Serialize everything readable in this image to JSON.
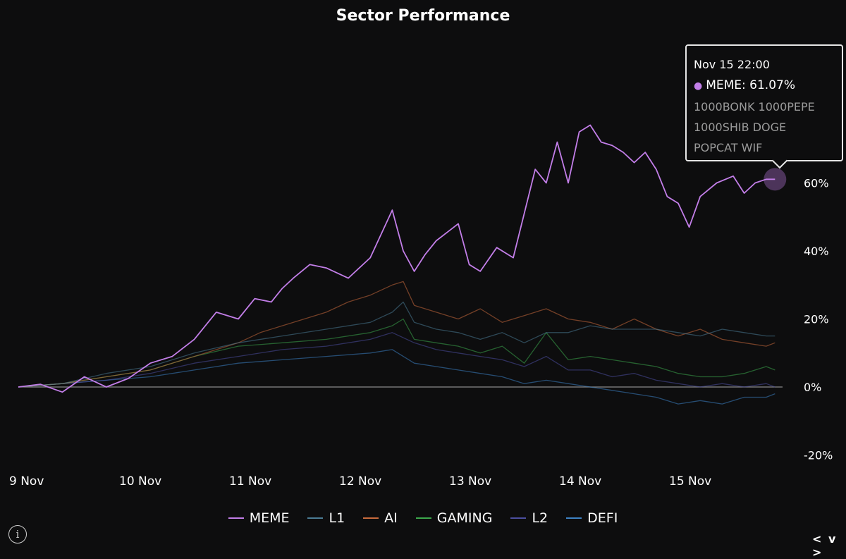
{
  "chart_data": {
    "type": "line",
    "title": "Sector Performance",
    "xlabel": "",
    "ylabel": "",
    "x_ticks": [
      "9 Nov",
      "10 Nov",
      "11 Nov",
      "12 Nov",
      "13 Nov",
      "14 Nov",
      "15 Nov"
    ],
    "y_ticks": [
      "-20%",
      "0%",
      "20%",
      "40%",
      "60%"
    ],
    "ylim": [
      -20,
      70
    ],
    "x_range": [
      0,
      6.88
    ],
    "grid": false,
    "legend_position": "bottom",
    "series": [
      {
        "name": "MEME",
        "color": "#c27ee8",
        "x": [
          0,
          0.2,
          0.4,
          0.6,
          0.8,
          1.0,
          1.2,
          1.4,
          1.6,
          1.8,
          2.0,
          2.15,
          2.3,
          2.4,
          2.5,
          2.65,
          2.8,
          3.0,
          3.2,
          3.4,
          3.5,
          3.6,
          3.7,
          3.8,
          4.0,
          4.1,
          4.2,
          4.35,
          4.5,
          4.7,
          4.8,
          4.9,
          5.0,
          5.1,
          5.2,
          5.3,
          5.4,
          5.5,
          5.6,
          5.7,
          5.8,
          5.9,
          6.0,
          6.1,
          6.2,
          6.35,
          6.5,
          6.6,
          6.7,
          6.8,
          6.88
        ],
        "y": [
          0,
          0.8,
          -1.5,
          3,
          0,
          2.5,
          7,
          9,
          14,
          22,
          20,
          26,
          25,
          29,
          32,
          36,
          35,
          32,
          38,
          52,
          40,
          34,
          39,
          43,
          48,
          36,
          34,
          41,
          38,
          64,
          60,
          72,
          60,
          75,
          77,
          72,
          71,
          69,
          66,
          69,
          64,
          56,
          54,
          47,
          56,
          60,
          62,
          57,
          60,
          61.07,
          61.07
        ]
      },
      {
        "name": "L1",
        "color": "#4b7c95",
        "x": [
          0,
          0.4,
          0.8,
          1.2,
          1.6,
          2.0,
          2.4,
          2.8,
          3.2,
          3.4,
          3.5,
          3.6,
          3.8,
          4.0,
          4.2,
          4.4,
          4.6,
          4.8,
          5.0,
          5.2,
          5.4,
          5.6,
          5.8,
          6.0,
          6.2,
          6.4,
          6.6,
          6.8,
          6.88
        ],
        "y": [
          0,
          1,
          4,
          6,
          10,
          13,
          15,
          17,
          19,
          22,
          25,
          19,
          17,
          16,
          14,
          16,
          13,
          16,
          16,
          18,
          17,
          17,
          17,
          16,
          15,
          17,
          16,
          15,
          15
        ]
      },
      {
        "name": "AI",
        "color": "#c86a3c",
        "x": [
          0,
          0.4,
          0.8,
          1.2,
          1.6,
          2.0,
          2.2,
          2.4,
          2.6,
          2.8,
          3.0,
          3.2,
          3.4,
          3.5,
          3.6,
          3.8,
          4.0,
          4.2,
          4.4,
          4.6,
          4.8,
          5.0,
          5.2,
          5.4,
          5.6,
          5.8,
          6.0,
          6.2,
          6.4,
          6.6,
          6.8,
          6.88
        ],
        "y": [
          0,
          1,
          3,
          5,
          9,
          13,
          16,
          18,
          20,
          22,
          25,
          27,
          30,
          31,
          24,
          22,
          20,
          23,
          19,
          21,
          23,
          20,
          19,
          17,
          20,
          17,
          15,
          17,
          14,
          13,
          12,
          13
        ]
      },
      {
        "name": "GAMING",
        "color": "#3ca84c",
        "x": [
          0,
          0.4,
          0.8,
          1.2,
          1.6,
          2.0,
          2.4,
          2.8,
          3.2,
          3.4,
          3.5,
          3.6,
          3.8,
          4.0,
          4.2,
          4.4,
          4.6,
          4.8,
          5.0,
          5.2,
          5.4,
          5.6,
          5.8,
          6.0,
          6.2,
          6.4,
          6.6,
          6.8,
          6.88
        ],
        "y": [
          0,
          1,
          3,
          5,
          9,
          12,
          13,
          14,
          16,
          18,
          20,
          14,
          13,
          12,
          10,
          12,
          7,
          16,
          8,
          9,
          8,
          7,
          6,
          4,
          3,
          3,
          4,
          6,
          5
        ]
      },
      {
        "name": "L2",
        "color": "#4c4fa0",
        "x": [
          0,
          0.4,
          0.8,
          1.2,
          1.6,
          2.0,
          2.4,
          2.8,
          3.2,
          3.4,
          3.6,
          3.8,
          4.0,
          4.2,
          4.4,
          4.6,
          4.8,
          5.0,
          5.2,
          5.4,
          5.6,
          5.8,
          6.0,
          6.2,
          6.4,
          6.6,
          6.8,
          6.88
        ],
        "y": [
          0,
          1,
          2,
          4,
          7,
          9,
          11,
          12,
          14,
          16,
          13,
          11,
          10,
          9,
          8,
          6,
          9,
          5,
          5,
          3,
          4,
          2,
          1,
          0,
          1,
          0,
          1,
          0
        ]
      },
      {
        "name": "DEFI",
        "color": "#3d82c4",
        "x": [
          0,
          0.4,
          0.8,
          1.2,
          1.6,
          2.0,
          2.4,
          2.8,
          3.2,
          3.4,
          3.6,
          3.8,
          4.0,
          4.2,
          4.4,
          4.6,
          4.8,
          5.0,
          5.2,
          5.4,
          5.6,
          5.8,
          6.0,
          6.2,
          6.4,
          6.6,
          6.8,
          6.88
        ],
        "y": [
          0,
          1,
          2,
          3,
          5,
          7,
          8,
          9,
          10,
          11,
          7,
          6,
          5,
          4,
          3,
          1,
          2,
          1,
          0,
          -1,
          -2,
          -3,
          -5,
          -4,
          -5,
          -3,
          -3,
          -2
        ]
      }
    ],
    "highlight_point": {
      "series": "MEME",
      "x": 6.88,
      "y": 61.07
    }
  },
  "tooltip": {
    "date": "Nov 15 22:00",
    "series_line": "MEME: 61.07%",
    "members_line1": "1000BONK 1000PEPE",
    "members_line2": "1000SHIB DOGE",
    "members_line3": "POPCAT WIF"
  },
  "controls": {
    "info_icon": "i",
    "nav_label": "< v >"
  },
  "colors": {
    "background": "#0d0d0e",
    "zero_line": "#8a8a8a"
  }
}
